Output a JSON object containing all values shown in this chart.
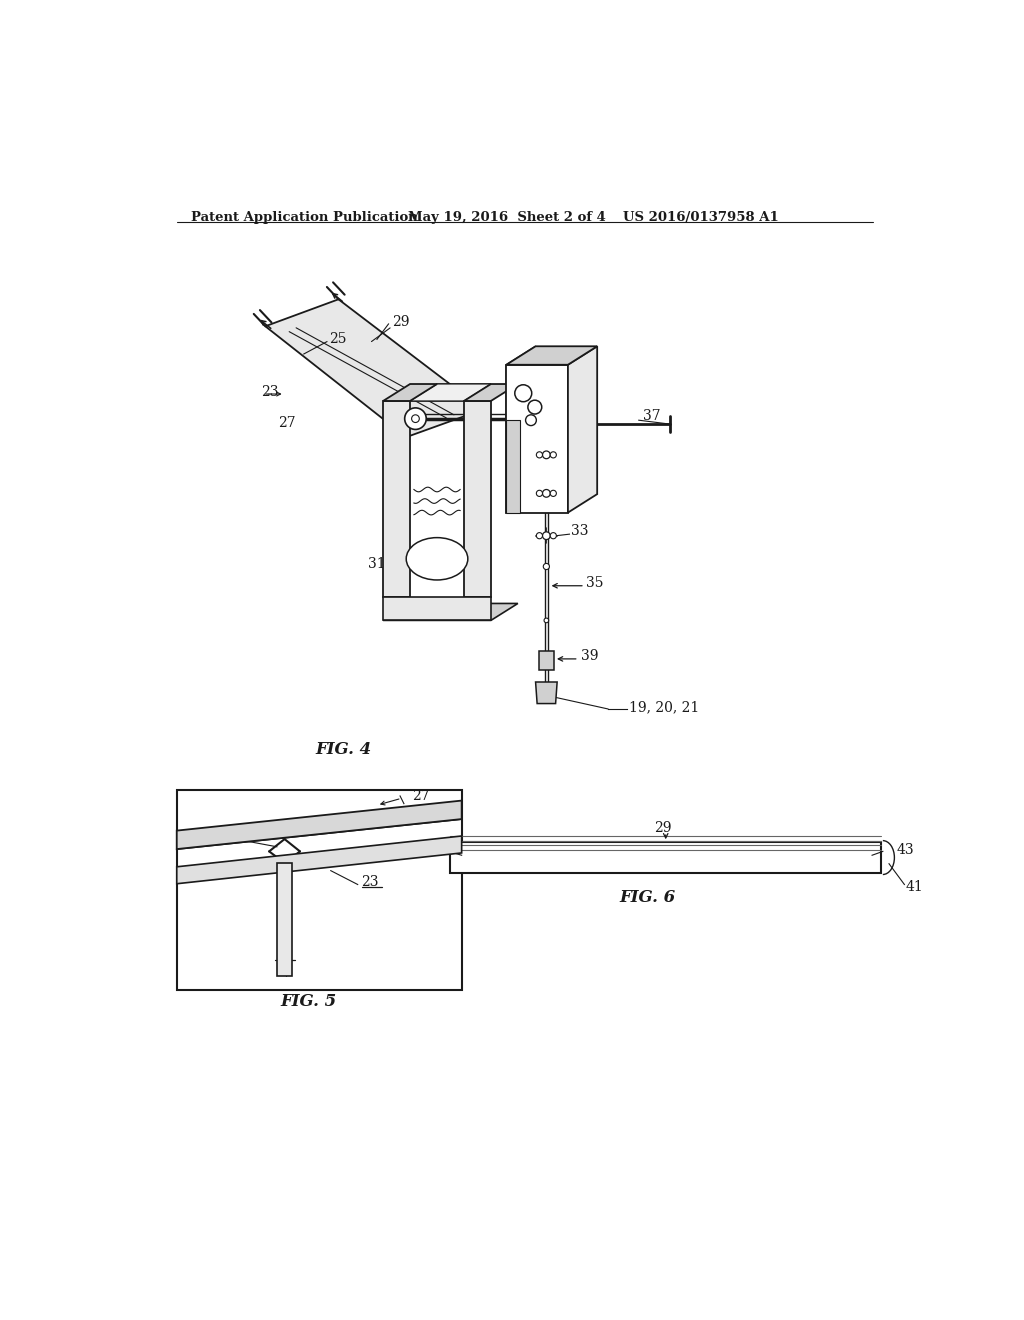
{
  "header_left": "Patent Application Publication",
  "header_mid": "May 19, 2016  Sheet 2 of 4",
  "header_right": "US 2016/0137958 A1",
  "fig4_label": "FIG. 4",
  "fig5_label": "FIG. 5",
  "fig6_label": "FIG. 6",
  "bg_color": "#ffffff",
  "line_color": "#1a1a1a",
  "gray_fill": "#e8e8e8",
  "mid_gray": "#d0d0d0",
  "dark_gray": "#b0b0b0"
}
